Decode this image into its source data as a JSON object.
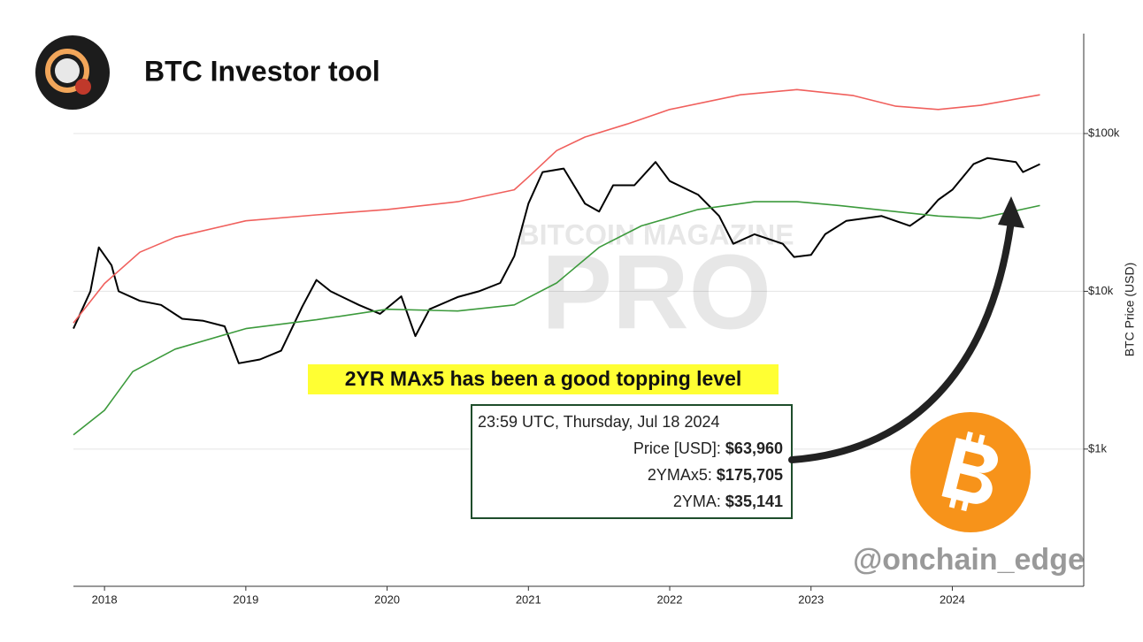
{
  "chart_data": {
    "type": "line",
    "title": "BTC Investor tool",
    "y_label": "BTC Price (USD)",
    "yscale": "log",
    "grid": true,
    "xlim": [
      2017.78,
      2024.93
    ],
    "xticks": [
      2018,
      2019,
      2020,
      2021,
      2022,
      2023,
      2024
    ],
    "ylim": [
      135,
      430000
    ],
    "yticks": [
      {
        "value": 1000,
        "label": "$1k"
      },
      {
        "value": 10000,
        "label": "$10k"
      },
      {
        "value": 100000,
        "label": "$100k"
      }
    ],
    "series": [
      {
        "name": "Price",
        "color": "#000000",
        "x": [
          2017.78,
          2017.9,
          2017.96,
          2018.05,
          2018.1,
          2018.25,
          2018.4,
          2018.55,
          2018.7,
          2018.85,
          2018.95,
          2019.1,
          2019.25,
          2019.4,
          2019.5,
          2019.6,
          2019.8,
          2019.95,
          2020.1,
          2020.2,
          2020.3,
          2020.5,
          2020.65,
          2020.8,
          2020.9,
          2021.0,
          2021.1,
          2021.25,
          2021.4,
          2021.5,
          2021.6,
          2021.75,
          2021.9,
          2022.0,
          2022.2,
          2022.35,
          2022.45,
          2022.6,
          2022.8,
          2022.88,
          2023.0,
          2023.1,
          2023.25,
          2023.5,
          2023.7,
          2023.8,
          2023.9,
          2024.0,
          2024.15,
          2024.25,
          2024.45,
          2024.5,
          2024.62
        ],
        "values": [
          5800,
          10000,
          19000,
          14600,
          10000,
          8700,
          8200,
          6700,
          6500,
          6000,
          3500,
          3700,
          4200,
          8000,
          11800,
          10000,
          8200,
          7200,
          9300,
          5200,
          7700,
          9200,
          10000,
          11300,
          16700,
          36000,
          57000,
          60000,
          36000,
          32000,
          47000,
          47000,
          66000,
          50000,
          41000,
          30000,
          20000,
          23000,
          20000,
          16500,
          17000,
          23000,
          28000,
          30000,
          26000,
          30000,
          38000,
          44000,
          64000,
          70000,
          66000,
          57000,
          64000
        ]
      },
      {
        "name": "2YMAx5",
        "color": "#f0605d",
        "x": [
          2017.78,
          2018.0,
          2018.25,
          2018.5,
          2019.0,
          2019.5,
          2020.0,
          2020.5,
          2020.9,
          2021.0,
          2021.2,
          2021.4,
          2021.7,
          2022.0,
          2022.5,
          2022.9,
          2023.3,
          2023.6,
          2023.9,
          2024.2,
          2024.62
        ],
        "values": [
          6300,
          11200,
          17700,
          22000,
          28000,
          30500,
          33000,
          37000,
          44000,
          53000,
          78000,
          95000,
          115000,
          142000,
          176000,
          190000,
          174000,
          149000,
          142000,
          151000,
          176000
        ]
      },
      {
        "name": "2YMA",
        "color": "#3c9a3c",
        "x": [
          2017.78,
          2018.0,
          2018.2,
          2018.5,
          2019.0,
          2019.5,
          2020.0,
          2020.5,
          2020.9,
          2021.2,
          2021.5,
          2021.8,
          2022.2,
          2022.6,
          2022.9,
          2023.2,
          2023.6,
          2023.9,
          2024.2,
          2024.62
        ],
        "values": [
          1230,
          1760,
          3100,
          4300,
          5800,
          6600,
          7700,
          7500,
          8200,
          11300,
          19000,
          26000,
          33000,
          37000,
          37000,
          35000,
          32000,
          30000,
          29000,
          35000
        ]
      }
    ],
    "annotation": "2YR MAx5 has been a good topping level",
    "tooltip": {
      "date": "23:59 UTC, Thursday, Jul 18 2024",
      "rows": [
        {
          "label": "Price [USD]:",
          "value": "$63,960"
        },
        {
          "label": "2YMAx5:",
          "value": "$175,705"
        },
        {
          "label": "2YMA:",
          "value": "$35,141"
        }
      ]
    },
    "watermark": [
      "BITCOIN MAGAZINE",
      "PRO"
    ],
    "handle": "@onchain_edge"
  }
}
